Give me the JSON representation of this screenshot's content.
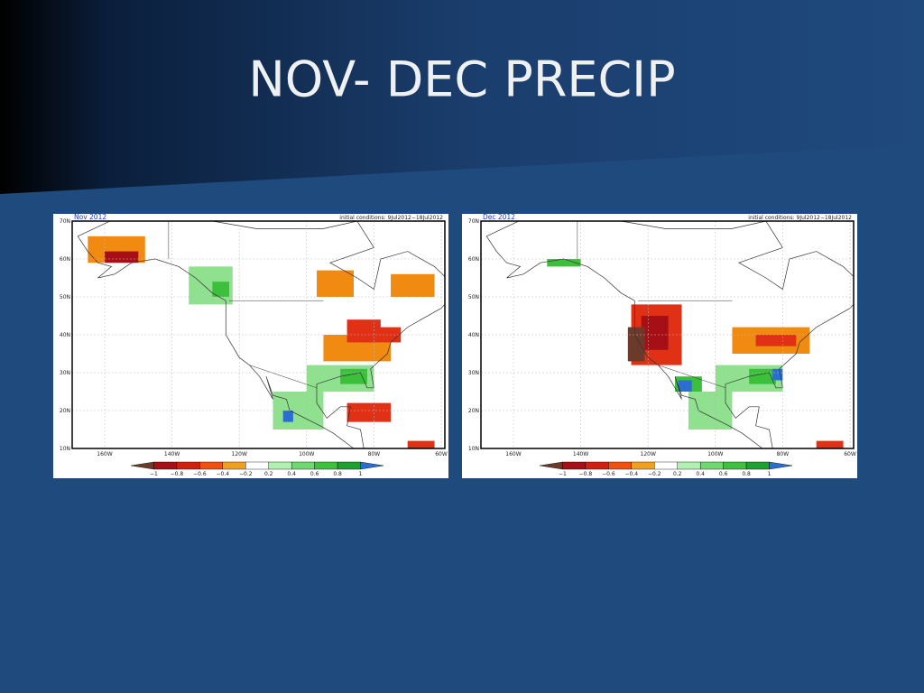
{
  "title": "NOV- DEC PRECIP",
  "maps": [
    {
      "title": "Nov 2012",
      "subtitle": "initial conditions: 9Jul2012−18Jul2012",
      "lat_labels": [
        "70N",
        "60N",
        "50N",
        "40N",
        "30N",
        "20N",
        "10N"
      ],
      "lon_labels": [
        "160W",
        "140W",
        "120W",
        "100W",
        "80W",
        "60W"
      ],
      "colorbar_labels": [
        "−1",
        "−0.8",
        "−0.6",
        "−0.4",
        "−0.2",
        "0.2",
        "0.4",
        "0.6",
        "0.8",
        "1"
      ]
    },
    {
      "title": "Dec 2012",
      "subtitle": "initial conditions: 9Jul2012−18Jul2012",
      "lat_labels": [
        "70N",
        "60N",
        "50N",
        "40N",
        "30N",
        "20N",
        "10N"
      ],
      "lon_labels": [
        "160W",
        "140W",
        "120W",
        "100W",
        "80W",
        "60W"
      ],
      "colorbar_labels": [
        "−1",
        "−0.8",
        "−0.6",
        "−0.4",
        "−0.2",
        "0.2",
        "0.4",
        "0.6",
        "0.8",
        "1"
      ]
    }
  ]
}
